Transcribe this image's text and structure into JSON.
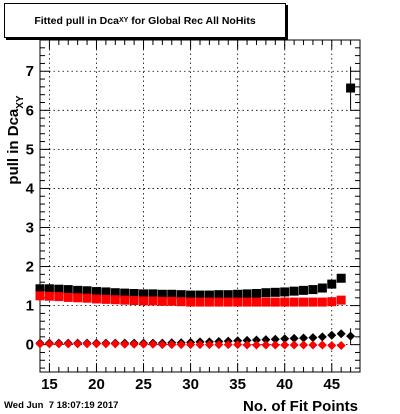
{
  "title": {
    "text": "Fitted pull in Dca",
    "sub": "XY",
    "suffix": " for Global Rec All NoHits"
  },
  "footer": {
    "timestamp": "Wed Jun  7 18:07:19 2017"
  },
  "chart_data": {
    "type": "scatter",
    "title": "Fitted pull in Dca_XY for Global Rec All NoHits",
    "xlabel": "No. of Fit Points",
    "ylabel": "pull in Dca_XY",
    "xlim": [
      14,
      48
    ],
    "ylim": [
      -0.7,
      7.8
    ],
    "x_ticks": [
      15,
      20,
      25,
      30,
      35,
      40,
      45
    ],
    "y_ticks": [
      0,
      1,
      2,
      3,
      4,
      5,
      6,
      7
    ],
    "grid": true,
    "colors": {
      "black": "#000000",
      "red": "#ff0000"
    },
    "series": [
      {
        "marker": "square",
        "color": "#000000",
        "x": [
          14,
          15,
          16,
          17,
          18,
          19,
          20,
          21,
          22,
          23,
          24,
          25,
          26,
          27,
          28,
          29,
          30,
          31,
          32,
          33,
          34,
          35,
          36,
          37,
          38,
          39,
          40,
          41,
          42,
          43,
          44,
          45,
          46,
          47
        ],
        "y": [
          1.43,
          1.43,
          1.42,
          1.41,
          1.39,
          1.38,
          1.36,
          1.35,
          1.33,
          1.32,
          1.31,
          1.3,
          1.3,
          1.29,
          1.29,
          1.28,
          1.27,
          1.27,
          1.27,
          1.28,
          1.28,
          1.29,
          1.3,
          1.31,
          1.33,
          1.34,
          1.35,
          1.37,
          1.39,
          1.41,
          1.45,
          1.55,
          1.7,
          6.57
        ],
        "yerr": [
          0.02,
          0.02,
          0.02,
          0.02,
          0.02,
          0.02,
          0.02,
          0.02,
          0.02,
          0.02,
          0.02,
          0.02,
          0.02,
          0.02,
          0.02,
          0.02,
          0.02,
          0.02,
          0.02,
          0.02,
          0.02,
          0.02,
          0.02,
          0.02,
          0.02,
          0.02,
          0.02,
          0.02,
          0.02,
          0.03,
          0.04,
          0.05,
          0.07,
          0.55
        ]
      },
      {
        "marker": "square",
        "color": "#ff0000",
        "x": [
          14,
          15,
          16,
          17,
          18,
          19,
          20,
          21,
          22,
          23,
          24,
          25,
          26,
          27,
          28,
          29,
          30,
          31,
          32,
          33,
          34,
          35,
          36,
          37,
          38,
          39,
          40,
          41,
          42,
          43,
          44,
          45,
          46
        ],
        "y": [
          1.25,
          1.24,
          1.23,
          1.21,
          1.2,
          1.19,
          1.17,
          1.16,
          1.15,
          1.14,
          1.13,
          1.12,
          1.12,
          1.11,
          1.11,
          1.1,
          1.09,
          1.09,
          1.09,
          1.09,
          1.09,
          1.09,
          1.09,
          1.09,
          1.09,
          1.09,
          1.09,
          1.09,
          1.09,
          1.09,
          1.09,
          1.1,
          1.14
        ],
        "yerr": []
      },
      {
        "marker": "diamond",
        "color": "#000000",
        "x": [
          14,
          15,
          16,
          17,
          18,
          19,
          20,
          21,
          22,
          23,
          24,
          25,
          26,
          27,
          28,
          29,
          30,
          31,
          32,
          33,
          34,
          35,
          36,
          37,
          38,
          39,
          40,
          41,
          42,
          43,
          44,
          45,
          46,
          47
        ],
        "y": [
          0.04,
          0.04,
          0.04,
          0.04,
          0.04,
          0.04,
          0.04,
          0.04,
          0.04,
          0.04,
          0.04,
          0.04,
          0.04,
          0.04,
          0.05,
          0.05,
          0.06,
          0.07,
          0.07,
          0.08,
          0.09,
          0.1,
          0.11,
          0.12,
          0.13,
          0.14,
          0.15,
          0.16,
          0.17,
          0.18,
          0.2,
          0.24,
          0.28,
          0.22
        ],
        "yerr": [
          0.01,
          0.01,
          0.01,
          0.01,
          0.01,
          0.01,
          0.01,
          0.01,
          0.01,
          0.01,
          0.01,
          0.01,
          0.01,
          0.01,
          0.01,
          0.01,
          0.01,
          0.01,
          0.01,
          0.01,
          0.01,
          0.01,
          0.01,
          0.01,
          0.01,
          0.01,
          0.01,
          0.01,
          0.01,
          0.02,
          0.02,
          0.03,
          0.05,
          0.2
        ]
      },
      {
        "marker": "diamond",
        "color": "#ff0000",
        "x": [
          14,
          15,
          16,
          17,
          18,
          19,
          20,
          21,
          22,
          23,
          24,
          25,
          26,
          27,
          28,
          29,
          30,
          31,
          32,
          33,
          34,
          35,
          36,
          37,
          38,
          39,
          40,
          41,
          42,
          43,
          44,
          45,
          46
        ],
        "y": [
          0.02,
          0.02,
          0.02,
          0.02,
          0.02,
          0.02,
          0.02,
          0.02,
          0.02,
          0.01,
          0.01,
          0.01,
          0.01,
          0.0,
          0.0,
          0.0,
          0.0,
          0.0,
          0.0,
          0.0,
          0.0,
          0.0,
          -0.01,
          -0.01,
          -0.01,
          -0.01,
          -0.01,
          -0.01,
          -0.01,
          -0.01,
          -0.01,
          -0.02,
          -0.02
        ],
        "yerr": []
      }
    ]
  }
}
